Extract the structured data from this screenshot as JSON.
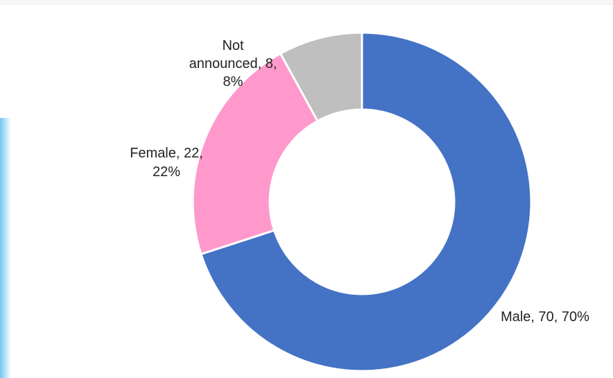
{
  "chart_data": {
    "type": "pie",
    "variant": "donut",
    "categories": [
      "Male",
      "Female",
      "Not announced"
    ],
    "values": [
      70,
      22,
      8
    ],
    "percentages": [
      "70%",
      "22%",
      "8%"
    ],
    "colors": [
      "#4472c4",
      "#ff99cc",
      "#bfbfbf"
    ],
    "data_labels": [
      [
        "Male, 70, 70%"
      ],
      [
        "Female, 22,",
        "22%"
      ],
      [
        "Not",
        "announced, 8,",
        "8%"
      ]
    ],
    "title": "",
    "legend": "none"
  }
}
